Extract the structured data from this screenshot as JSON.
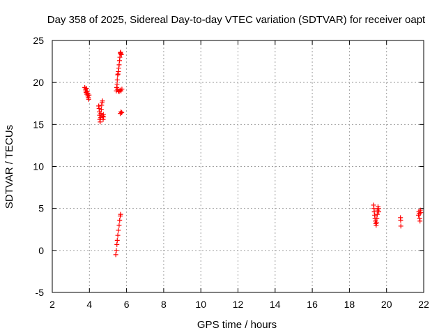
{
  "chart_data": {
    "type": "scatter",
    "title": "Day 358 of 2025, Sidereal Day-to-day VTEC variation (SDTVAR) for receiver oapt",
    "xlabel": "GPS time / hours",
    "ylabel": "SDTVAR / TECUs",
    "xlim": [
      2,
      22
    ],
    "ylim": [
      -5,
      25
    ],
    "xticks": [
      2,
      4,
      6,
      8,
      10,
      12,
      14,
      16,
      18,
      20,
      22
    ],
    "yticks": [
      -5,
      0,
      5,
      10,
      15,
      20,
      25
    ],
    "grid": true,
    "marker": "+",
    "color": "#ff0000",
    "series": [
      {
        "name": "SDTVAR",
        "points": [
          [
            3.75,
            19.4
          ],
          [
            3.78,
            19.2
          ],
          [
            3.8,
            19.0
          ],
          [
            3.82,
            18.8
          ],
          [
            3.84,
            19.3
          ],
          [
            3.86,
            18.6
          ],
          [
            3.88,
            18.9
          ],
          [
            3.9,
            18.4
          ],
          [
            3.92,
            18.7
          ],
          [
            3.94,
            18.2
          ],
          [
            3.96,
            18.0
          ],
          [
            3.98,
            18.5
          ],
          [
            4.5,
            17.2
          ],
          [
            4.52,
            16.9
          ],
          [
            4.54,
            16.5
          ],
          [
            4.55,
            16.1
          ],
          [
            4.56,
            15.6
          ],
          [
            4.58,
            15.3
          ],
          [
            4.6,
            15.8
          ],
          [
            4.62,
            16.3
          ],
          [
            4.64,
            16.8
          ],
          [
            4.66,
            17.3
          ],
          [
            4.68,
            17.6
          ],
          [
            4.7,
            17.8
          ],
          [
            4.72,
            16.0
          ],
          [
            4.74,
            15.6
          ],
          [
            4.75,
            16.2
          ],
          [
            4.76,
            15.9
          ],
          [
            5.42,
            -0.5
          ],
          [
            5.45,
            0.0
          ],
          [
            5.48,
            0.7
          ],
          [
            5.5,
            1.2
          ],
          [
            5.53,
            1.8
          ],
          [
            5.56,
            2.4
          ],
          [
            5.6,
            3.0
          ],
          [
            5.63,
            3.6
          ],
          [
            5.66,
            4.1
          ],
          [
            5.68,
            4.3
          ],
          [
            5.45,
            19.0
          ],
          [
            5.47,
            19.4
          ],
          [
            5.49,
            19.8
          ],
          [
            5.5,
            20.3
          ],
          [
            5.52,
            20.9
          ],
          [
            5.54,
            21.0
          ],
          [
            5.56,
            21.3
          ],
          [
            5.58,
            21.7
          ],
          [
            5.6,
            22.1
          ],
          [
            5.62,
            22.6
          ],
          [
            5.64,
            23.0
          ],
          [
            5.66,
            23.5
          ],
          [
            5.68,
            23.6
          ],
          [
            5.7,
            23.4
          ],
          [
            5.72,
            23.3
          ],
          [
            5.5,
            19.2
          ],
          [
            5.55,
            19.0
          ],
          [
            5.6,
            18.9
          ],
          [
            5.65,
            19.1
          ],
          [
            5.7,
            19.0
          ],
          [
            5.75,
            19.2
          ],
          [
            5.66,
            16.3
          ],
          [
            5.7,
            16.5
          ],
          [
            5.74,
            16.4
          ],
          [
            19.3,
            5.4
          ],
          [
            19.32,
            5.0
          ],
          [
            19.34,
            4.6
          ],
          [
            19.36,
            4.2
          ],
          [
            19.38,
            3.8
          ],
          [
            19.4,
            3.5
          ],
          [
            19.42,
            3.2
          ],
          [
            19.44,
            3.0
          ],
          [
            19.46,
            3.3
          ],
          [
            19.48,
            3.8
          ],
          [
            19.5,
            4.3
          ],
          [
            19.52,
            4.8
          ],
          [
            19.54,
            5.2
          ],
          [
            19.56,
            5.0
          ],
          [
            19.58,
            4.6
          ],
          [
            20.75,
            3.9
          ],
          [
            20.76,
            3.6
          ],
          [
            20.77,
            2.9
          ],
          [
            21.72,
            4.2
          ],
          [
            21.74,
            4.6
          ],
          [
            21.76,
            4.4
          ],
          [
            21.78,
            3.8
          ],
          [
            21.8,
            3.5
          ],
          [
            21.82,
            4.8
          ],
          [
            21.84,
            4.5
          ]
        ]
      }
    ]
  }
}
